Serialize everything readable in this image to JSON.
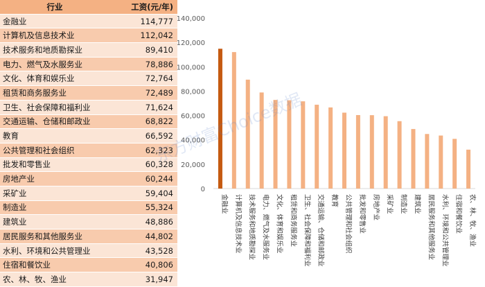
{
  "table": {
    "header_industry": "行业",
    "header_wage": "工资(元/年)"
  },
  "watermark": "东方财富Choice数据",
  "chart_data": {
    "type": "bar",
    "categories": [
      "金融业",
      "计算机及信息技术业",
      "技术服务和地质勘探业",
      "电力、燃气及水服务业",
      "文化、体育和娱乐业",
      "租赁和商务服务业",
      "卫生、社会保障和福利业",
      "交通运输、仓储和邮政业",
      "教育",
      "公共管理和社会组织",
      "批发和零售业",
      "房地产业",
      "采矿业",
      "制造业",
      "建筑业",
      "居民服务和其他服务业",
      "水利、环境和公共管理业",
      "住宿和餐饮业",
      "农、林、牧、渔业"
    ],
    "display_values": [
      "114,777",
      "112,042",
      "89,410",
      "78,886",
      "72,764",
      "72,489",
      "71,624",
      "68,822",
      "66,592",
      "62,323",
      "60,328",
      "60,244",
      "59,404",
      "55,324",
      "48,886",
      "44,802",
      "43,528",
      "40,806",
      "31,947"
    ],
    "values": [
      114777,
      112042,
      89410,
      78886,
      72764,
      72489,
      71624,
      68822,
      66592,
      62323,
      60328,
      60244,
      59404,
      55324,
      48886,
      44802,
      43528,
      40806,
      31947
    ],
    "ylim": [
      0,
      140000
    ],
    "yticks": [
      "0",
      "20,000",
      "40,000",
      "60,000",
      "80,000",
      "100,000",
      "120,000",
      "140,000"
    ],
    "grid": false,
    "colors": {
      "highlight": "#c55a11",
      "bar": "#f4b183"
    }
  }
}
